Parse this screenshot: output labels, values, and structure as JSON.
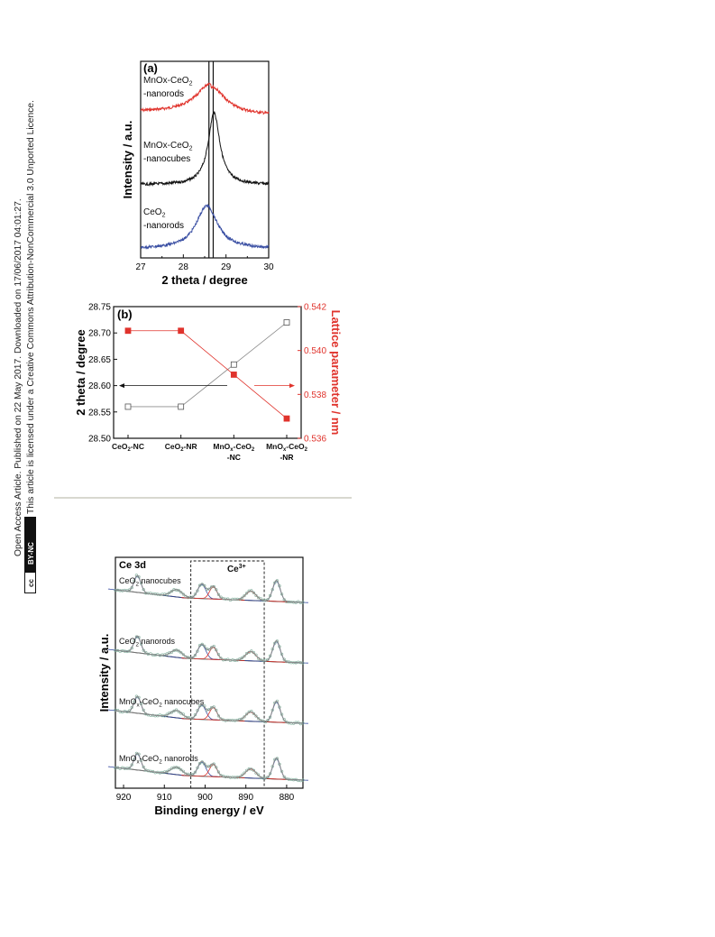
{
  "sidebar": {
    "line1": "Open Access Article. Published on 22 May 2017. Downloaded on 17/06/2017 04:01:27.",
    "line2": "This article is licensed under a Creative Commons Attribution-NonCommercial 3.0 Unported Licence.",
    "badge_cc": "cc",
    "badge_text": "BY-NC"
  },
  "colors": {
    "red": "#e0332c",
    "black": "#111111",
    "blue": "#3a4fa3",
    "green": "#7fae9b",
    "grey": "#8c8c8c"
  },
  "figures": [
    {
      "panel_label": "(a)",
      "chart_data": {
        "type": "line",
        "xlabel": "2 theta / degree",
        "ylabel": "Intensity / a.u.",
        "xlim": [
          27,
          30
        ],
        "x_ticks": [
          "27",
          "28",
          "29",
          "30"
        ],
        "reference_lines_x": [
          28.6,
          28.7
        ],
        "series": [
          {
            "label_line1": "MnOx-CeO",
            "label_sub": "2",
            "label_line2": "-nanorods",
            "color": "#e0332c",
            "peak_x": 28.65,
            "width": 0.8,
            "height": 0.45
          },
          {
            "label_line1": "MnOx-CeO",
            "label_sub": "2",
            "label_line2": "-nanocubes",
            "color": "#111111",
            "peak_x": 28.72,
            "width": 0.33,
            "height": 1.0
          },
          {
            "label_line1": "CeO",
            "label_sub": "2",
            "label_line2": "-nanorods",
            "color": "#3a4fa3",
            "peak_x": 28.55,
            "width": 0.6,
            "height": 0.55
          }
        ]
      }
    },
    {
      "panel_label": "(b)",
      "chart_data": {
        "type": "line",
        "categories": [
          {
            "main": "CeO",
            "sub": "2",
            "tail": "-NC",
            "line2": ""
          },
          {
            "main": "CeO",
            "sub": "2",
            "tail": "-NR",
            "line2": ""
          },
          {
            "main": "MnO",
            "sub": "x",
            "tail": "-CeO",
            "sub2": "2",
            "line2": "-NC"
          },
          {
            "main": "MnO",
            "sub": "x",
            "tail": "-CeO",
            "sub2": "2",
            "line2": "-NR"
          }
        ],
        "ylabel_left": "2 theta / degree",
        "ylabel_right": "Lattice parameter / nm",
        "ylim_left": [
          28.5,
          28.75
        ],
        "ylim_right": [
          0.536,
          0.542
        ],
        "y_ticks_left": [
          "28.50",
          "28.55",
          "28.60",
          "28.65",
          "28.70",
          "28.75"
        ],
        "y_ticks_right": [
          "0.536",
          "0.538",
          "0.540",
          "0.542"
        ],
        "series": [
          {
            "axis": "left",
            "marker": "open-square",
            "color": "#8c8c8c",
            "values": [
              28.56,
              28.56,
              28.64,
              28.72
            ]
          },
          {
            "axis": "right",
            "marker": "filled-square",
            "color": "#e0332c",
            "values": [
              0.5409,
              0.5409,
              0.5389,
              0.5369
            ]
          }
        ]
      }
    },
    {
      "chart_data": {
        "type": "line",
        "title": "Ce 3d",
        "region_label": "Ce",
        "region_label_sup": "3+",
        "region_x": [
          903.5,
          885.5
        ],
        "xlabel": "Binding energy / eV",
        "ylabel": "Intensity / a.u.",
        "xlim": [
          922,
          876
        ],
        "x_ticks": [
          "920",
          "910",
          "900",
          "890",
          "880"
        ],
        "peaks": [
          {
            "x": 916.6,
            "h": 0.8,
            "w": 1.2
          },
          {
            "x": 907.0,
            "h": 0.35,
            "w": 2.0
          },
          {
            "x": 900.8,
            "h": 0.7,
            "w": 1.4
          },
          {
            "x": 898.0,
            "h": 0.6,
            "w": 1.3
          },
          {
            "x": 888.8,
            "h": 0.45,
            "w": 1.8
          },
          {
            "x": 882.5,
            "h": 1.0,
            "w": 1.3
          }
        ],
        "series": [
          {
            "label_pre": "CeO",
            "label_sub": "2",
            "label_post": " nanocubes"
          },
          {
            "label_pre": "CeO",
            "label_sub": "2",
            "label_post": " nanorods"
          },
          {
            "label_pre": "MnO",
            "label_sub": "x",
            "label_post": "-CeO",
            "label_sub2": "2",
            "label_post2": " nanocubes"
          },
          {
            "label_pre": "MnO",
            "label_sub": "x",
            "label_post": "-CeO",
            "label_sub2": "2",
            "label_post2": " nanorods"
          }
        ]
      }
    }
  ]
}
